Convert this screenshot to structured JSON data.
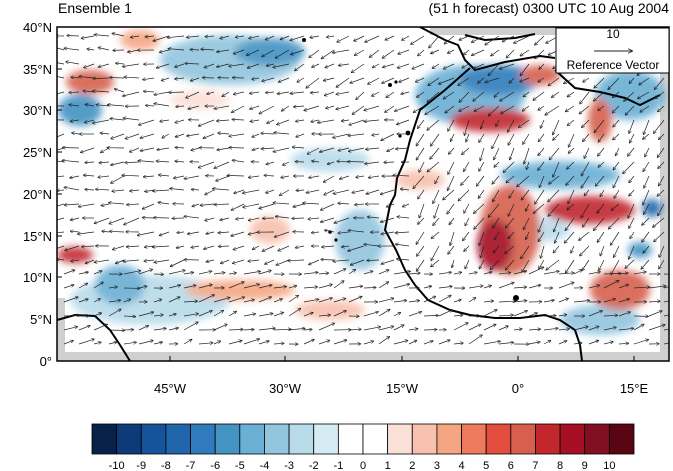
{
  "map": {
    "title_left": "Ensemble 1",
    "title_right": "(51 h forecast) 0300 UTC 10 Aug 2004",
    "lat_ticks": [
      "40°N",
      "35°N",
      "30°N",
      "25°N",
      "20°N",
      "15°N",
      "10°N",
      "5°N",
      "0°"
    ],
    "lon_ticks": [
      "45°W",
      "30°W",
      "15°W",
      "0°",
      "15°E"
    ],
    "reference_vector": {
      "value": "10",
      "label": "Reference Vector"
    },
    "colorbar": {
      "labels": [
        "-10",
        "-9",
        "-8",
        "-7",
        "-6",
        "-5",
        "-4",
        "-3",
        "-2",
        "-1",
        "0",
        "1",
        "2",
        "3",
        "4",
        "5",
        "6",
        "7",
        "8",
        "9",
        "10"
      ],
      "colors": [
        "#08214a",
        "#0d3a78",
        "#15549b",
        "#2166ac",
        "#2f7bbb",
        "#4393c3",
        "#6aafd4",
        "#92c5de",
        "#b8dbea",
        "#d6ecf5",
        "#ffffff",
        "#ffffff",
        "#fbe0d8",
        "#f8c0ae",
        "#f4a582",
        "#ed7a5c",
        "#e34d3e",
        "#d6604d",
        "#c1272d",
        "#a50f24",
        "#800f22",
        "#5a0513"
      ]
    }
  }
}
